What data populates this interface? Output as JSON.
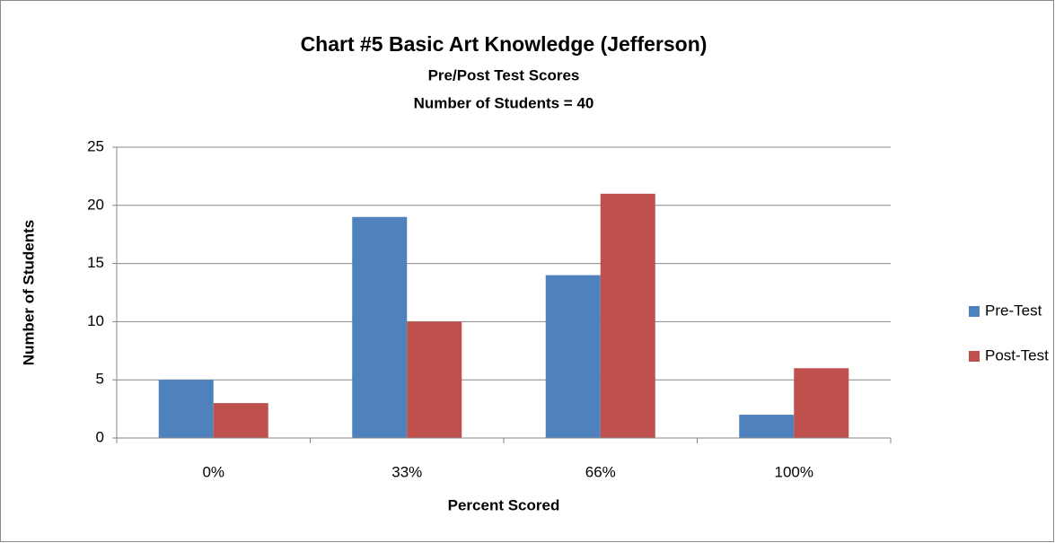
{
  "chart_data": {
    "type": "bar",
    "title": "Chart #5 Basic Art Knowledge (Jefferson)",
    "subtitle": [
      "Pre/Post Test Scores",
      "Number of Students = 40"
    ],
    "x_label": "Percent Scored",
    "y_label": "Number of Students",
    "categories": [
      "0%",
      "33%",
      "66%",
      "100%"
    ],
    "series": [
      {
        "name": "Pre-Test",
        "color": "#4f81bd",
        "values": [
          5,
          19,
          14,
          2
        ]
      },
      {
        "name": "Post-Test",
        "color": "#c0504d",
        "values": [
          3,
          10,
          21,
          6
        ]
      }
    ],
    "ylim": [
      0,
      25
    ],
    "yticks": [
      0,
      5,
      10,
      15,
      20,
      25
    ],
    "grid": true,
    "legend": "right"
  }
}
